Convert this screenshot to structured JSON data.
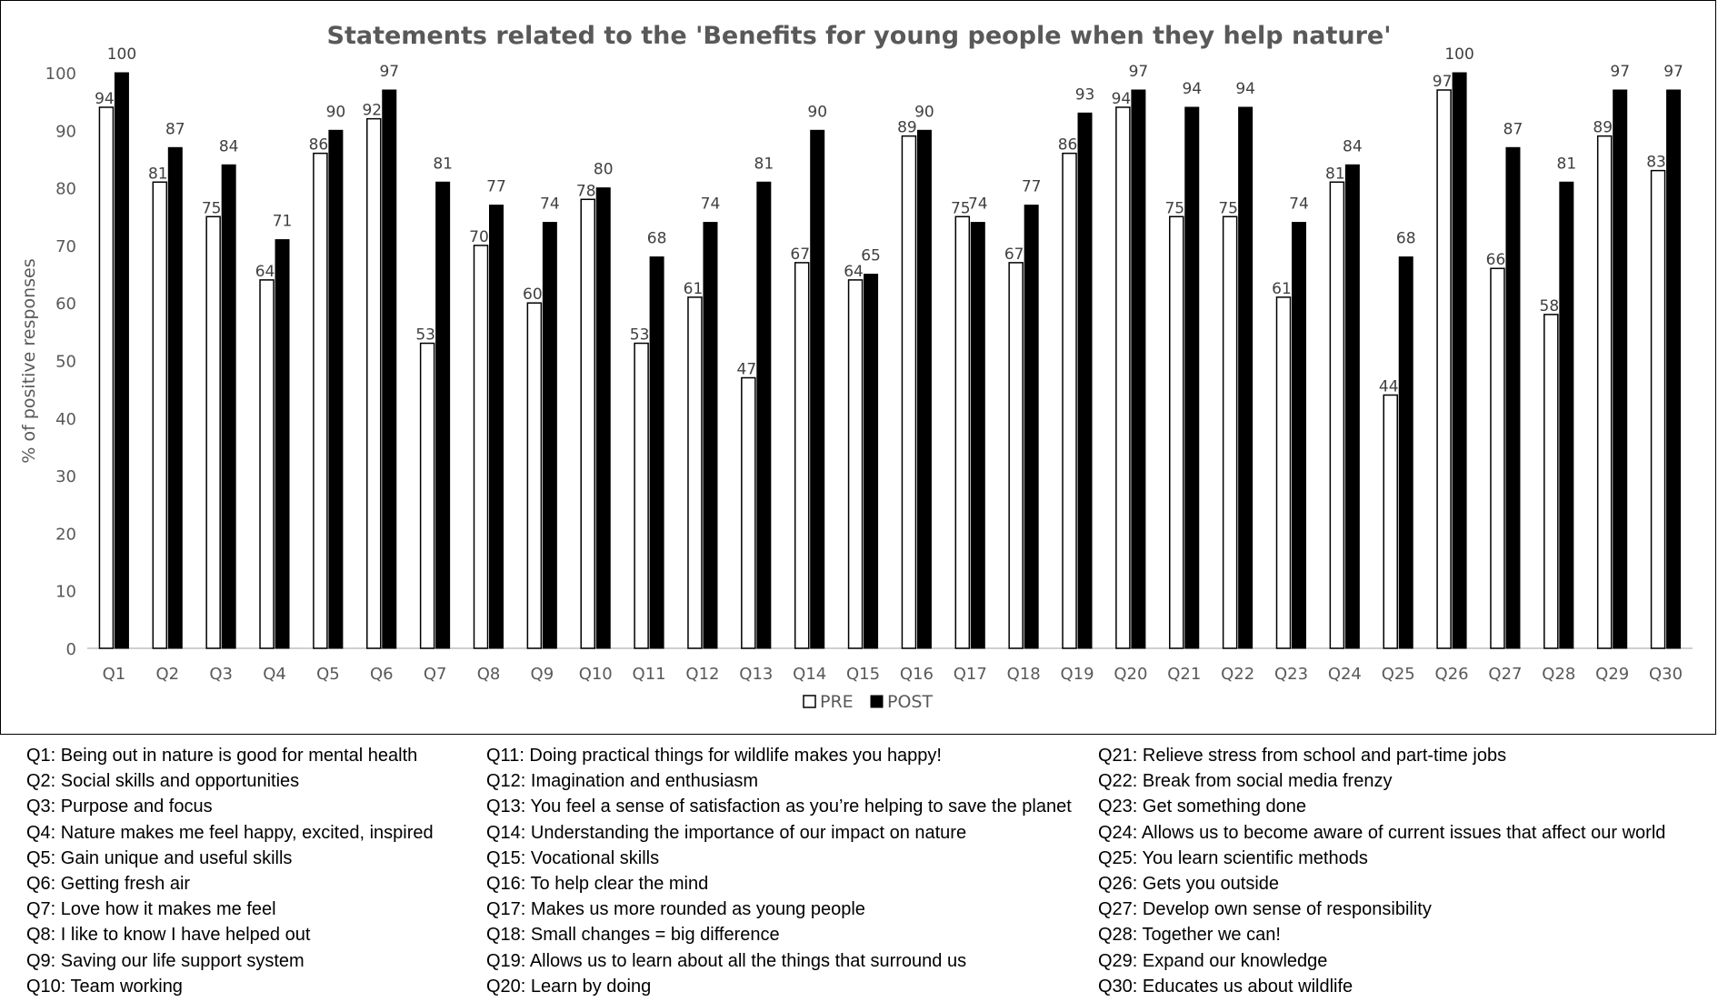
{
  "chart_data": {
    "type": "bar",
    "title": "Statements related to the 'Benefits for young people when they help nature'",
    "ylabel": "% of positive responses",
    "xlabel": "",
    "ylim": [
      0,
      100
    ],
    "yticks": [
      0,
      10,
      20,
      30,
      40,
      50,
      60,
      70,
      80,
      90,
      100
    ],
    "grid": false,
    "legend_position": "bottom-center",
    "categories": [
      "Q1",
      "Q2",
      "Q3",
      "Q4",
      "Q5",
      "Q6",
      "Q7",
      "Q8",
      "Q9",
      "Q10",
      "Q11",
      "Q12",
      "Q13",
      "Q14",
      "Q15",
      "Q16",
      "Q17",
      "Q18",
      "Q19",
      "Q20",
      "Q21",
      "Q22",
      "Q23",
      "Q24",
      "Q25",
      "Q26",
      "Q27",
      "Q28",
      "Q29",
      "Q30"
    ],
    "series": [
      {
        "name": "PRE",
        "color": "#ffffff",
        "stroke": "#000000",
        "values": [
          94,
          81,
          75,
          64,
          86,
          92,
          53,
          70,
          60,
          78,
          53,
          61,
          47,
          67,
          64,
          89,
          75,
          67,
          86,
          94,
          75,
          75,
          61,
          81,
          44,
          97,
          66,
          58,
          89,
          83
        ]
      },
      {
        "name": "POST",
        "color": "#000000",
        "stroke": "#000000",
        "values": [
          100,
          87,
          84,
          71,
          90,
          97,
          81,
          77,
          74,
          80,
          68,
          74,
          81,
          90,
          65,
          90,
          74,
          77,
          93,
          97,
          94,
          94,
          74,
          84,
          68,
          100,
          87,
          81,
          97,
          97
        ]
      }
    ]
  },
  "legend_notes": [
    [
      "Q1: Being out in nature is good for mental health",
      "Q11: Doing practical things for wildlife makes you happy!",
      "Q21: Relieve stress from school and part-time jobs"
    ],
    [
      "Q2: Social skills and opportunities",
      "Q12: Imagination and enthusiasm",
      "Q22: Break from social media frenzy"
    ],
    [
      "Q3: Purpose and focus",
      "Q13: You feel a sense of satisfaction as you’re helping to save the planet",
      "Q23: Get something done"
    ],
    [
      "Q4: Nature makes me feel happy, excited, inspired",
      "Q14: Understanding the importance of our impact on nature",
      "Q24: Allows us to become aware of current issues that affect our world"
    ],
    [
      "Q5: Gain unique and useful skills",
      "Q15: Vocational skills",
      "Q25: You learn scientific methods"
    ],
    [
      "Q6: Getting fresh air",
      "Q16: To help clear the mind",
      "Q26: Gets you outside"
    ],
    [
      "Q7: Love how it makes me feel",
      "Q17: Makes us more rounded as young people",
      "Q27: Develop own sense of responsibility"
    ],
    [
      "Q8: I like to know I have helped out",
      "Q18: Small changes = big difference",
      "Q28: Together we can!"
    ],
    [
      "Q9: Saving our life support system",
      "Q19: Allows us to learn about all the things that surround us",
      "Q29: Expand our knowledge"
    ],
    [
      "Q10: Team working",
      "Q20: Learn by doing",
      "Q30: Educates us about wildlife"
    ]
  ]
}
